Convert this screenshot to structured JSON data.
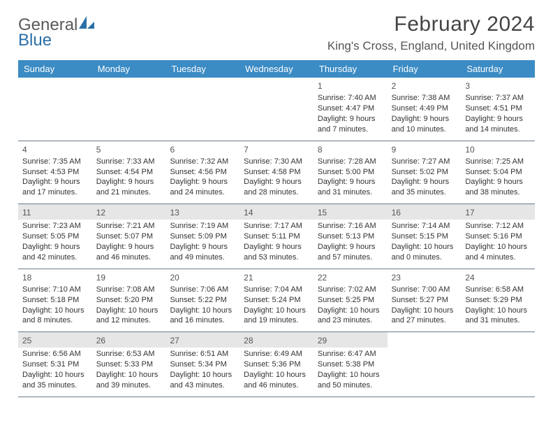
{
  "brand": {
    "word1": "General",
    "word2": "Blue"
  },
  "title": {
    "month": "February 2024",
    "location": "King's Cross, England, United Kingdom"
  },
  "colors": {
    "header_bg": "#3b8bc4",
    "header_text": "#ffffff",
    "rule": "#6b7a8a",
    "shade_bg": "#e6e6e6",
    "body_text": "#333333",
    "logo_gray": "#5a5a5a",
    "logo_blue": "#2a6fa8"
  },
  "dayheads": [
    "Sunday",
    "Monday",
    "Tuesday",
    "Wednesday",
    "Thursday",
    "Friday",
    "Saturday"
  ],
  "weeks": [
    [
      {
        "n": "",
        "empty": true
      },
      {
        "n": "",
        "empty": true
      },
      {
        "n": "",
        "empty": true
      },
      {
        "n": "",
        "empty": true
      },
      {
        "n": "1",
        "sunrise": "Sunrise: 7:40 AM",
        "sunset": "Sunset: 4:47 PM",
        "dl1": "Daylight: 9 hours",
        "dl2": "and 7 minutes."
      },
      {
        "n": "2",
        "sunrise": "Sunrise: 7:38 AM",
        "sunset": "Sunset: 4:49 PM",
        "dl1": "Daylight: 9 hours",
        "dl2": "and 10 minutes."
      },
      {
        "n": "3",
        "sunrise": "Sunrise: 7:37 AM",
        "sunset": "Sunset: 4:51 PM",
        "dl1": "Daylight: 9 hours",
        "dl2": "and 14 minutes."
      }
    ],
    [
      {
        "n": "4",
        "sunrise": "Sunrise: 7:35 AM",
        "sunset": "Sunset: 4:53 PM",
        "dl1": "Daylight: 9 hours",
        "dl2": "and 17 minutes."
      },
      {
        "n": "5",
        "sunrise": "Sunrise: 7:33 AM",
        "sunset": "Sunset: 4:54 PM",
        "dl1": "Daylight: 9 hours",
        "dl2": "and 21 minutes."
      },
      {
        "n": "6",
        "sunrise": "Sunrise: 7:32 AM",
        "sunset": "Sunset: 4:56 PM",
        "dl1": "Daylight: 9 hours",
        "dl2": "and 24 minutes."
      },
      {
        "n": "7",
        "sunrise": "Sunrise: 7:30 AM",
        "sunset": "Sunset: 4:58 PM",
        "dl1": "Daylight: 9 hours",
        "dl2": "and 28 minutes."
      },
      {
        "n": "8",
        "sunrise": "Sunrise: 7:28 AM",
        "sunset": "Sunset: 5:00 PM",
        "dl1": "Daylight: 9 hours",
        "dl2": "and 31 minutes."
      },
      {
        "n": "9",
        "sunrise": "Sunrise: 7:27 AM",
        "sunset": "Sunset: 5:02 PM",
        "dl1": "Daylight: 9 hours",
        "dl2": "and 35 minutes."
      },
      {
        "n": "10",
        "sunrise": "Sunrise: 7:25 AM",
        "sunset": "Sunset: 5:04 PM",
        "dl1": "Daylight: 9 hours",
        "dl2": "and 38 minutes."
      }
    ],
    [
      {
        "n": "11",
        "sunrise": "Sunrise: 7:23 AM",
        "sunset": "Sunset: 5:05 PM",
        "dl1": "Daylight: 9 hours",
        "dl2": "and 42 minutes."
      },
      {
        "n": "12",
        "sunrise": "Sunrise: 7:21 AM",
        "sunset": "Sunset: 5:07 PM",
        "dl1": "Daylight: 9 hours",
        "dl2": "and 46 minutes."
      },
      {
        "n": "13",
        "sunrise": "Sunrise: 7:19 AM",
        "sunset": "Sunset: 5:09 PM",
        "dl1": "Daylight: 9 hours",
        "dl2": "and 49 minutes."
      },
      {
        "n": "14",
        "sunrise": "Sunrise: 7:17 AM",
        "sunset": "Sunset: 5:11 PM",
        "dl1": "Daylight: 9 hours",
        "dl2": "and 53 minutes."
      },
      {
        "n": "15",
        "sunrise": "Sunrise: 7:16 AM",
        "sunset": "Sunset: 5:13 PM",
        "dl1": "Daylight: 9 hours",
        "dl2": "and 57 minutes."
      },
      {
        "n": "16",
        "sunrise": "Sunrise: 7:14 AM",
        "sunset": "Sunset: 5:15 PM",
        "dl1": "Daylight: 10 hours",
        "dl2": "and 0 minutes."
      },
      {
        "n": "17",
        "sunrise": "Sunrise: 7:12 AM",
        "sunset": "Sunset: 5:16 PM",
        "dl1": "Daylight: 10 hours",
        "dl2": "and 4 minutes."
      }
    ],
    [
      {
        "n": "18",
        "sunrise": "Sunrise: 7:10 AM",
        "sunset": "Sunset: 5:18 PM",
        "dl1": "Daylight: 10 hours",
        "dl2": "and 8 minutes."
      },
      {
        "n": "19",
        "sunrise": "Sunrise: 7:08 AM",
        "sunset": "Sunset: 5:20 PM",
        "dl1": "Daylight: 10 hours",
        "dl2": "and 12 minutes."
      },
      {
        "n": "20",
        "sunrise": "Sunrise: 7:06 AM",
        "sunset": "Sunset: 5:22 PM",
        "dl1": "Daylight: 10 hours",
        "dl2": "and 16 minutes."
      },
      {
        "n": "21",
        "sunrise": "Sunrise: 7:04 AM",
        "sunset": "Sunset: 5:24 PM",
        "dl1": "Daylight: 10 hours",
        "dl2": "and 19 minutes."
      },
      {
        "n": "22",
        "sunrise": "Sunrise: 7:02 AM",
        "sunset": "Sunset: 5:25 PM",
        "dl1": "Daylight: 10 hours",
        "dl2": "and 23 minutes."
      },
      {
        "n": "23",
        "sunrise": "Sunrise: 7:00 AM",
        "sunset": "Sunset: 5:27 PM",
        "dl1": "Daylight: 10 hours",
        "dl2": "and 27 minutes."
      },
      {
        "n": "24",
        "sunrise": "Sunrise: 6:58 AM",
        "sunset": "Sunset: 5:29 PM",
        "dl1": "Daylight: 10 hours",
        "dl2": "and 31 minutes."
      }
    ],
    [
      {
        "n": "25",
        "sunrise": "Sunrise: 6:56 AM",
        "sunset": "Sunset: 5:31 PM",
        "dl1": "Daylight: 10 hours",
        "dl2": "and 35 minutes."
      },
      {
        "n": "26",
        "sunrise": "Sunrise: 6:53 AM",
        "sunset": "Sunset: 5:33 PM",
        "dl1": "Daylight: 10 hours",
        "dl2": "and 39 minutes."
      },
      {
        "n": "27",
        "sunrise": "Sunrise: 6:51 AM",
        "sunset": "Sunset: 5:34 PM",
        "dl1": "Daylight: 10 hours",
        "dl2": "and 43 minutes."
      },
      {
        "n": "28",
        "sunrise": "Sunrise: 6:49 AM",
        "sunset": "Sunset: 5:36 PM",
        "dl1": "Daylight: 10 hours",
        "dl2": "and 46 minutes."
      },
      {
        "n": "29",
        "sunrise": "Sunrise: 6:47 AM",
        "sunset": "Sunset: 5:38 PM",
        "dl1": "Daylight: 10 hours",
        "dl2": "and 50 minutes."
      },
      {
        "n": "",
        "empty": true
      },
      {
        "n": "",
        "empty": true
      }
    ]
  ],
  "shade_weeks": [
    2,
    4
  ]
}
